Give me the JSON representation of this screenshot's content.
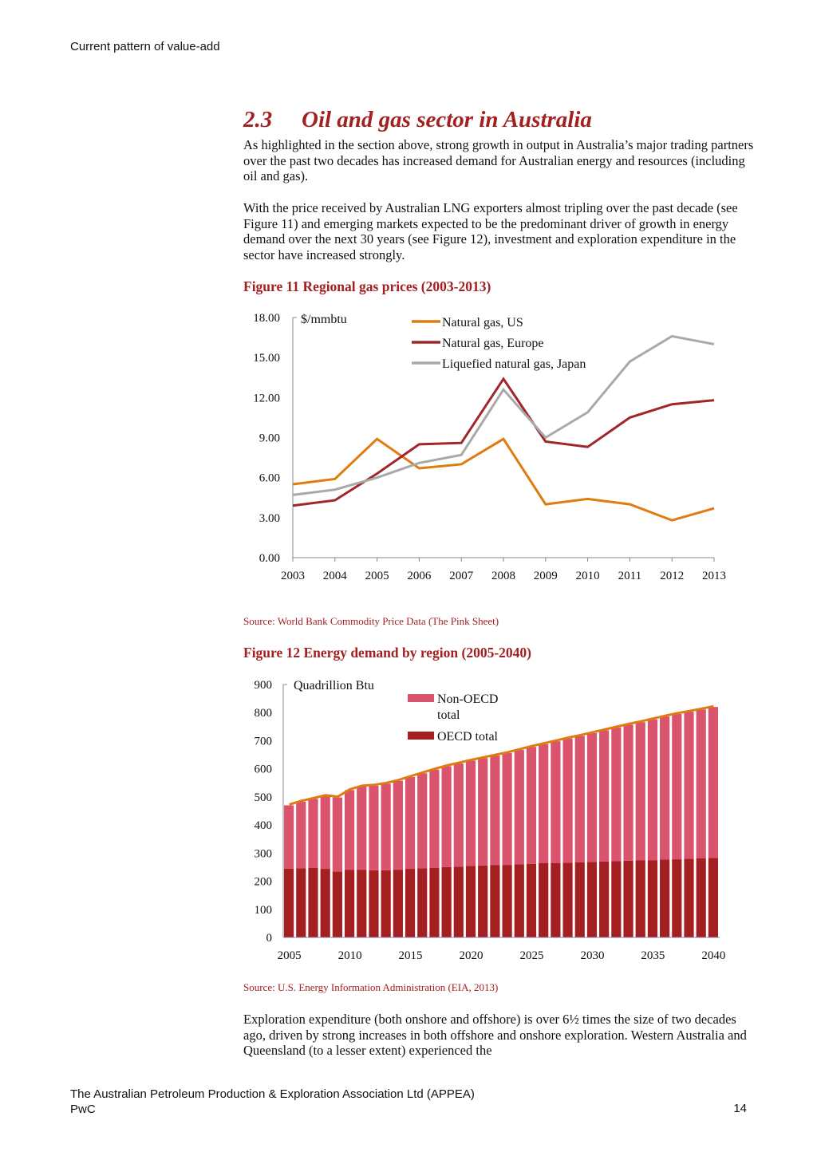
{
  "header": {
    "running_title": "Current pattern of value-add"
  },
  "section": {
    "number": "2.3",
    "title": "Oil and gas sector in Australia"
  },
  "paragraphs": [
    "As highlighted in the section above, strong growth in output in Australia’s major trading partners over the past two decades has increased demand for Australian energy and resources (including oil and gas).",
    "With the price received by Australian LNG exporters almost tripling over the past decade (see Figure 11) and emerging markets expected to be the predominant driver of growth in energy demand over the next 30 years (see Figure 12), investment and exploration expenditure in the sector have increased strongly.",
    "Exploration expenditure (both onshore and offshore) is over 6½ times the size of two decades ago, driven by strong increases in both offshore and onshore exploration. Western Australia and Queensland (to a lesser extent) experienced the"
  ],
  "figures": [
    {
      "caption": "Figure 11 Regional gas prices (2003-2013)",
      "source": "Source: World Bank Commodity Price Data (The Pink Sheet)"
    },
    {
      "caption": "Figure 12 Energy demand by region (2005-2040)",
      "source": "Source: U.S. Energy Information Administration (EIA, 2013)"
    }
  ],
  "chart_data": [
    {
      "type": "line",
      "unit_label": "$/mmbtu",
      "x": [
        2003,
        2004,
        2005,
        2006,
        2007,
        2008,
        2009,
        2010,
        2011,
        2012,
        2013
      ],
      "ylim": [
        0,
        18
      ],
      "yticks": [
        "0.00",
        "3.00",
        "6.00",
        "9.00",
        "12.00",
        "15.00",
        "18.00"
      ],
      "legend_position": "top",
      "grid": false,
      "series": [
        {
          "name": "Natural gas, US",
          "color": "#e07b10",
          "values": [
            5.5,
            5.9,
            8.9,
            6.7,
            7.0,
            8.9,
            4.0,
            4.4,
            4.0,
            2.8,
            3.7
          ]
        },
        {
          "name": "Natural gas, Europe",
          "color": "#a0262a",
          "values": [
            3.9,
            4.3,
            6.3,
            8.5,
            8.6,
            13.4,
            8.7,
            8.3,
            10.5,
            11.5,
            11.8
          ]
        },
        {
          "name": "Liquefied natural gas, Japan",
          "color": "#a9a9a9",
          "values": [
            4.7,
            5.1,
            6.0,
            7.1,
            7.7,
            12.6,
            9.0,
            10.9,
            14.7,
            16.6,
            16.0
          ]
        }
      ]
    },
    {
      "type": "bar",
      "stacked": true,
      "unit_label": "Quadrillion Btu",
      "x": [
        2005,
        2006,
        2007,
        2008,
        2009,
        2010,
        2011,
        2012,
        2013,
        2014,
        2015,
        2016,
        2017,
        2018,
        2019,
        2020,
        2021,
        2022,
        2023,
        2024,
        2025,
        2026,
        2027,
        2028,
        2029,
        2030,
        2031,
        2032,
        2033,
        2034,
        2035,
        2036,
        2037,
        2038,
        2039,
        2040
      ],
      "xticks": [
        "2005",
        "2010",
        "2015",
        "2020",
        "2025",
        "2030",
        "2035",
        "2040"
      ],
      "ylim": [
        0,
        900
      ],
      "yticks": [
        "0",
        "100",
        "200",
        "300",
        "400",
        "500",
        "600",
        "700",
        "800",
        "900"
      ],
      "legend_position": "top",
      "grid": false,
      "total_line_color": "#e07b10",
      "series": [
        {
          "name": "OECD total",
          "color": "#a31f22",
          "values": [
            245,
            246,
            247,
            244,
            234,
            241,
            241,
            239,
            239,
            241,
            244,
            246,
            248,
            250,
            252,
            254,
            256,
            257,
            258,
            260,
            262,
            264,
            265,
            266,
            267,
            269,
            270,
            272,
            273,
            274,
            275,
            277,
            278,
            280,
            281,
            283
          ]
        },
        {
          "name": "Non-OECD total",
          "color": "#d9546c",
          "values": [
            225,
            237,
            246,
            259,
            264,
            283,
            296,
            301,
            308,
            316,
            327,
            338,
            349,
            359,
            367,
            375,
            382,
            390,
            398,
            407,
            416,
            424,
            433,
            442,
            450,
            458,
            467,
            475,
            484,
            492,
            501,
            509,
            517,
            523,
            530,
            537
          ]
        }
      ]
    }
  ],
  "footer": {
    "line1": "The Australian Petroleum Production & Exploration Association Ltd (APPEA)",
    "line2": "PwC",
    "page_number": "14"
  }
}
